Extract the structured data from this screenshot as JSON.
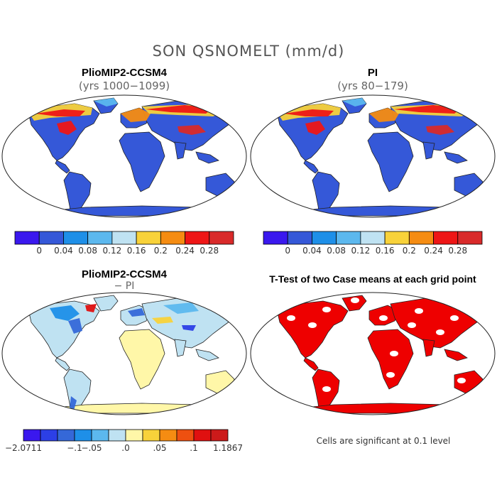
{
  "figure": {
    "title": "SON QSNOMELT (mm/d)"
  },
  "panels": [
    {
      "id": "top-left",
      "title": "PlioMIP2-CCSM4",
      "subtitle": "(yrs 1000−1099)"
    },
    {
      "id": "top-right",
      "title": "PI",
      "subtitle": "(yrs 80−179)"
    },
    {
      "id": "bottom-left",
      "title": "PlioMIP2-CCSM4",
      "subtitle": "− PI"
    },
    {
      "id": "bottom-right",
      "title": "T-Test of two Case means at each grid point",
      "subtitle": ""
    }
  ],
  "colorbars": {
    "absolute": {
      "colors": [
        "#3a18ee",
        "#3558d8",
        "#1e8fe8",
        "#5cb8ee",
        "#bfe2f2",
        "#f8d23a",
        "#f58c12",
        "#ee1616",
        "#d92a2a"
      ],
      "labels": [
        "0",
        "0.04",
        "0.08",
        "0.12",
        "0.16",
        "0.2",
        "0.24",
        "0.28"
      ]
    },
    "difference": {
      "colors": [
        "#3a18ee",
        "#2c3fe6",
        "#3568d8",
        "#1e8fe8",
        "#5cb8ee",
        "#bfe2f2",
        "#fff7a8",
        "#f8d23a",
        "#f58c12",
        "#ee5010",
        "#e01010",
        "#cc1a1a"
      ],
      "labels": [
        "−2.0711",
        "−.1",
        "−.05",
        ".0",
        ".05",
        ".1",
        "1.1867"
      ]
    }
  },
  "map_colors": {
    "ocean": "#ffffff",
    "land_low": "#3558d8",
    "diff_base": "#bfe2f2",
    "diff_warm": "#fff7a8",
    "significant": "#ee0000"
  },
  "note": "Cells are significant at 0.1 level"
}
